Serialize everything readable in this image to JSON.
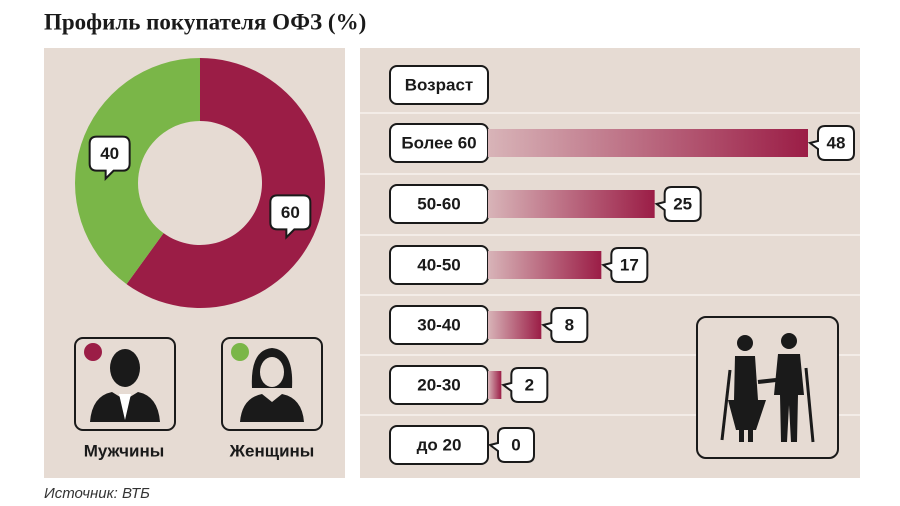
{
  "title": "Профиль покупателя ОФЗ (%)",
  "source": "Источник: ВТБ",
  "chart_data": [
    {
      "type": "pie",
      "categories": [
        "Мужчины",
        "Женщины"
      ],
      "values": [
        60,
        40
      ],
      "colors": [
        "#9b1d46",
        "#7ab648"
      ]
    },
    {
      "type": "bar",
      "orientation": "horizontal",
      "header": "Возраст",
      "categories": [
        "Более 60",
        "50-60",
        "40-50",
        "30-40",
        "20-30",
        "до 20"
      ],
      "values": [
        48,
        25,
        17,
        8,
        2,
        0
      ],
      "color": "#9b1d46"
    }
  ]
}
